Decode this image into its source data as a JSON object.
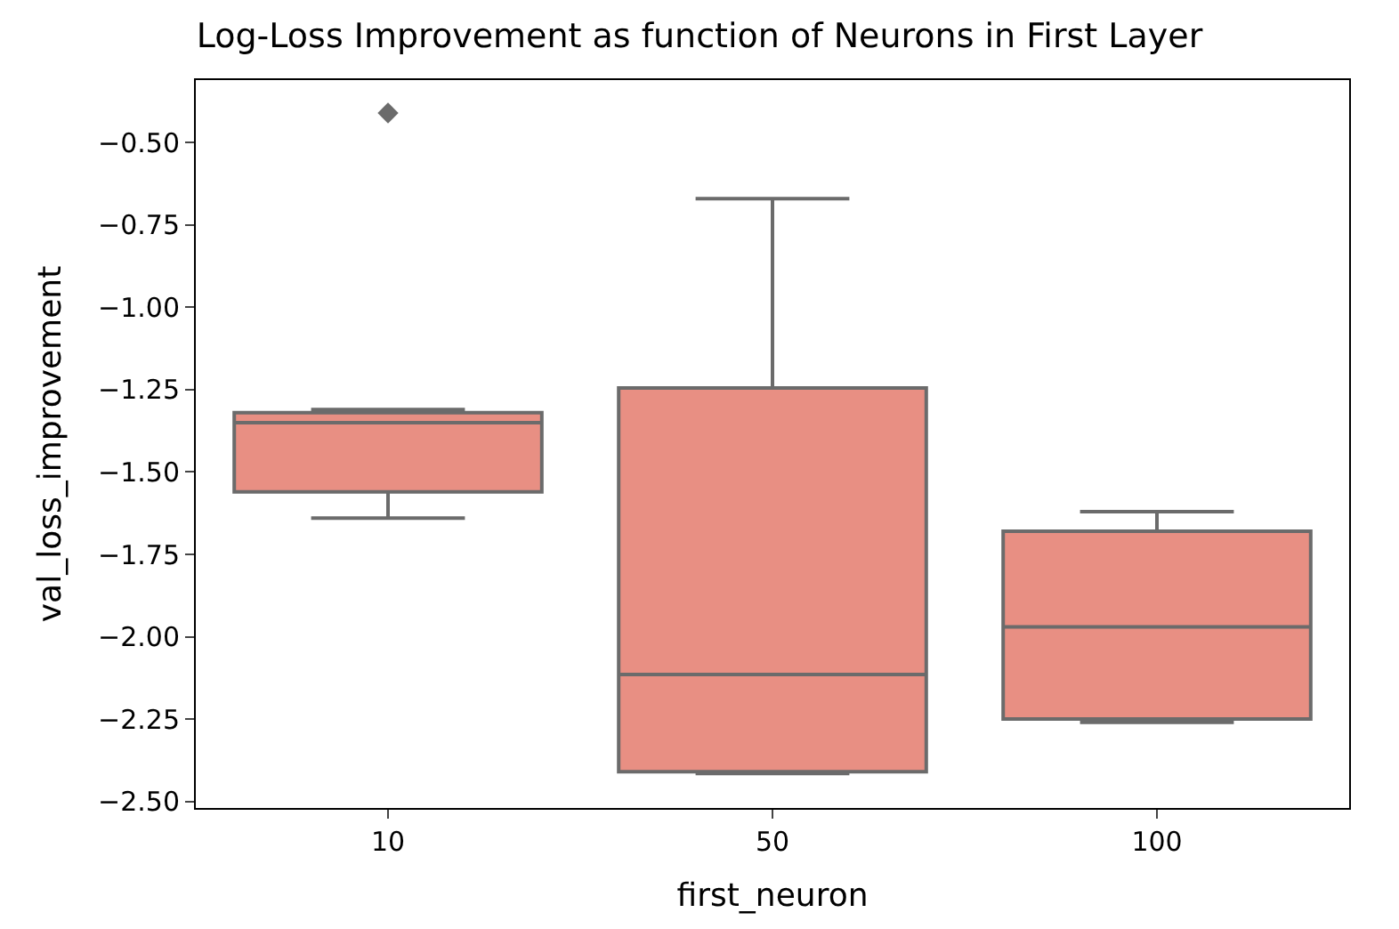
{
  "chart_data": {
    "type": "box",
    "title": "Log-Loss Improvement as function of Neurons in First Layer",
    "xlabel": "first_neuron",
    "ylabel": "val_loss_improvement",
    "categories": [
      "10",
      "50",
      "100"
    ],
    "boxes": [
      {
        "low": -1.64,
        "q1": -1.56,
        "median": -1.35,
        "q3": -1.32,
        "high": -1.31,
        "outliers": [
          -0.41
        ]
      },
      {
        "low": -2.415,
        "q1": -2.41,
        "median": -2.115,
        "q3": -1.245,
        "high": -0.67
      },
      {
        "low": -2.26,
        "q1": -2.25,
        "median": -1.97,
        "q3": -1.68,
        "high": -1.62
      }
    ],
    "color": "#e88f83",
    "ylim": [
      -2.52,
      -0.31
    ],
    "yticks": [
      {
        "value": -2.5,
        "label": "−2.50"
      },
      {
        "value": -2.25,
        "label": "−2.25"
      },
      {
        "value": -2.0,
        "label": "−2.00"
      },
      {
        "value": -1.75,
        "label": "−1.75"
      },
      {
        "value": -1.5,
        "label": "−1.50"
      },
      {
        "value": -1.25,
        "label": "−1.25"
      },
      {
        "value": -1.0,
        "label": "−1.00"
      },
      {
        "value": -0.75,
        "label": "−0.75"
      },
      {
        "value": -0.5,
        "label": "−0.50"
      }
    ],
    "marker": "diamond"
  }
}
